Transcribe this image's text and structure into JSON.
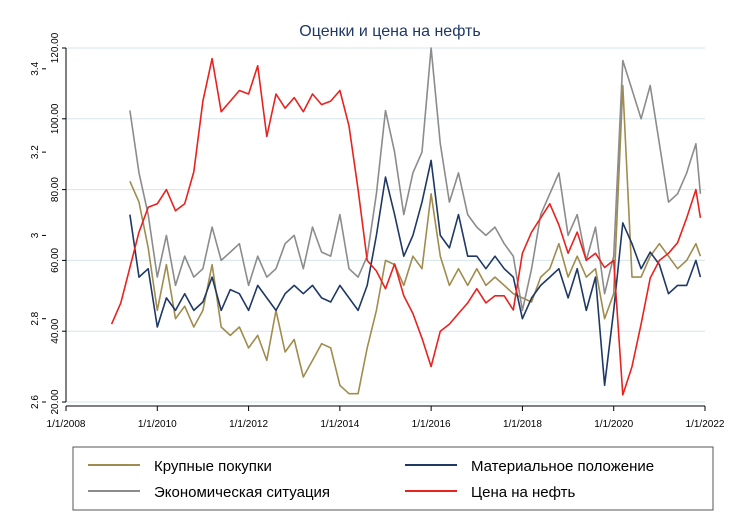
{
  "chart_data": {
    "type": "line",
    "title": "Оценки и цена на нефть",
    "x_ticks": [
      "1/1/2008",
      "1/1/2010",
      "1/1/2012",
      "1/1/2014",
      "1/1/2016",
      "1/1/2018",
      "1/1/2020",
      "1/1/2022"
    ],
    "x_range": [
      2008.0,
      2022.0
    ],
    "left_axis": {
      "ticks": [
        "2.6",
        "2.8",
        "3",
        "3.2",
        "3.4"
      ],
      "range": [
        2.6,
        3.45
      ]
    },
    "right_axis": {
      "ticks": [
        "20.00",
        "40.00",
        "60.00",
        "80.00",
        "100.00",
        "120.00"
      ],
      "range": [
        20,
        120
      ]
    },
    "legend_position": "bottom",
    "series": [
      {
        "name": "Крупные покупки",
        "axis": "left",
        "color": "#a08c4e",
        "x": [
          2009.4,
          2009.6,
          2009.8,
          2010.0,
          2010.2,
          2010.4,
          2010.6,
          2010.8,
          2011.0,
          2011.2,
          2011.4,
          2011.6,
          2011.8,
          2012.0,
          2012.2,
          2012.4,
          2012.6,
          2012.8,
          2013.0,
          2013.2,
          2013.4,
          2013.6,
          2013.8,
          2014.0,
          2014.2,
          2014.4,
          2014.6,
          2014.8,
          2015.0,
          2015.2,
          2015.4,
          2015.6,
          2015.8,
          2016.0,
          2016.2,
          2016.4,
          2016.6,
          2016.8,
          2017.0,
          2017.2,
          2017.4,
          2017.6,
          2017.8,
          2018.0,
          2018.2,
          2018.4,
          2018.6,
          2018.8,
          2019.0,
          2019.2,
          2019.4,
          2019.6,
          2019.8,
          2020.0,
          2020.2,
          2020.4,
          2020.6,
          2020.8,
          2021.0,
          2021.2,
          2021.4,
          2021.6,
          2021.8,
          2021.9
        ],
        "y": [
          3.13,
          3.08,
          2.97,
          2.82,
          2.93,
          2.8,
          2.83,
          2.78,
          2.82,
          2.93,
          2.78,
          2.76,
          2.78,
          2.73,
          2.76,
          2.7,
          2.82,
          2.72,
          2.75,
          2.66,
          2.7,
          2.74,
          2.73,
          2.64,
          2.62,
          2.62,
          2.73,
          2.82,
          2.94,
          2.93,
          2.88,
          2.95,
          2.92,
          3.1,
          2.95,
          2.88,
          2.92,
          2.88,
          2.92,
          2.88,
          2.9,
          2.88,
          2.86,
          2.85,
          2.84,
          2.9,
          2.92,
          2.98,
          2.9,
          2.95,
          2.9,
          2.92,
          2.8,
          2.86,
          3.36,
          2.9,
          2.9,
          2.95,
          2.98,
          2.95,
          2.92,
          2.94,
          2.98,
          2.95
        ]
      },
      {
        "name": "Материальное положение",
        "axis": "left",
        "color": "#1f3864",
        "x": [
          2009.4,
          2009.6,
          2009.8,
          2010.0,
          2010.2,
          2010.4,
          2010.6,
          2010.8,
          2011.0,
          2011.2,
          2011.4,
          2011.6,
          2011.8,
          2012.0,
          2012.2,
          2012.4,
          2012.6,
          2012.8,
          2013.0,
          2013.2,
          2013.4,
          2013.6,
          2013.8,
          2014.0,
          2014.2,
          2014.4,
          2014.6,
          2014.8,
          2015.0,
          2015.2,
          2015.4,
          2015.6,
          2015.8,
          2016.0,
          2016.2,
          2016.4,
          2016.6,
          2016.8,
          2017.0,
          2017.2,
          2017.4,
          2017.6,
          2017.8,
          2018.0,
          2018.2,
          2018.4,
          2018.6,
          2018.8,
          2019.0,
          2019.2,
          2019.4,
          2019.6,
          2019.8,
          2020.0,
          2020.2,
          2020.4,
          2020.6,
          2020.8,
          2021.0,
          2021.2,
          2021.4,
          2021.6,
          2021.8,
          2021.9
        ],
        "y": [
          3.05,
          2.9,
          2.92,
          2.78,
          2.85,
          2.82,
          2.86,
          2.82,
          2.84,
          2.9,
          2.82,
          2.87,
          2.86,
          2.82,
          2.88,
          2.85,
          2.82,
          2.86,
          2.88,
          2.86,
          2.88,
          2.85,
          2.84,
          2.88,
          2.85,
          2.82,
          2.88,
          3.0,
          3.14,
          3.05,
          2.95,
          3.0,
          3.08,
          3.18,
          3.0,
          2.97,
          3.05,
          2.95,
          2.95,
          2.92,
          2.95,
          2.92,
          2.9,
          2.8,
          2.85,
          2.88,
          2.9,
          2.92,
          2.85,
          2.92,
          2.82,
          2.9,
          2.64,
          2.82,
          3.03,
          2.98,
          2.92,
          2.96,
          2.93,
          2.86,
          2.88,
          2.88,
          2.94,
          2.9
        ]
      },
      {
        "name": "Экономическая ситуация",
        "axis": "left",
        "color": "#8c8c8c",
        "x": [
          2009.4,
          2009.6,
          2009.8,
          2010.0,
          2010.2,
          2010.4,
          2010.6,
          2010.8,
          2011.0,
          2011.2,
          2011.4,
          2011.6,
          2011.8,
          2012.0,
          2012.2,
          2012.4,
          2012.6,
          2012.8,
          2013.0,
          2013.2,
          2013.4,
          2013.6,
          2013.8,
          2014.0,
          2014.2,
          2014.4,
          2014.6,
          2014.8,
          2015.0,
          2015.2,
          2015.4,
          2015.6,
          2015.8,
          2016.0,
          2016.2,
          2016.4,
          2016.6,
          2016.8,
          2017.0,
          2017.2,
          2017.4,
          2017.6,
          2017.8,
          2018.0,
          2018.2,
          2018.4,
          2018.6,
          2018.8,
          2019.0,
          2019.2,
          2019.4,
          2019.6,
          2019.8,
          2020.0,
          2020.2,
          2020.4,
          2020.6,
          2020.8,
          2021.0,
          2021.2,
          2021.4,
          2021.6,
          2021.8,
          2021.9
        ],
        "y": [
          3.3,
          3.15,
          3.05,
          2.9,
          3.0,
          2.88,
          2.95,
          2.9,
          2.92,
          3.02,
          2.94,
          2.96,
          2.98,
          2.88,
          2.95,
          2.9,
          2.92,
          2.98,
          3.0,
          2.92,
          3.02,
          2.96,
          2.95,
          3.05,
          2.92,
          2.9,
          2.95,
          3.1,
          3.3,
          3.2,
          3.05,
          3.15,
          3.2,
          3.45,
          3.22,
          3.08,
          3.15,
          3.05,
          3.02,
          3.0,
          3.02,
          2.98,
          2.95,
          2.82,
          2.92,
          3.05,
          3.1,
          3.15,
          3.0,
          3.05,
          2.94,
          3.02,
          2.86,
          2.95,
          3.42,
          3.35,
          3.28,
          3.36,
          3.22,
          3.08,
          3.1,
          3.15,
          3.22,
          3.1
        ]
      },
      {
        "name": "Цена на нефть",
        "axis": "right",
        "color": "#e8231f",
        "x": [
          2009.0,
          2009.2,
          2009.4,
          2009.6,
          2009.8,
          2010.0,
          2010.2,
          2010.4,
          2010.6,
          2010.8,
          2011.0,
          2011.2,
          2011.4,
          2011.6,
          2011.8,
          2012.0,
          2012.2,
          2012.4,
          2012.6,
          2012.8,
          2013.0,
          2013.2,
          2013.4,
          2013.6,
          2013.8,
          2014.0,
          2014.2,
          2014.4,
          2014.6,
          2014.8,
          2015.0,
          2015.2,
          2015.4,
          2015.6,
          2015.8,
          2016.0,
          2016.2,
          2016.4,
          2016.6,
          2016.8,
          2017.0,
          2017.2,
          2017.4,
          2017.6,
          2017.8,
          2018.0,
          2018.2,
          2018.4,
          2018.6,
          2018.8,
          2019.0,
          2019.2,
          2019.4,
          2019.6,
          2019.8,
          2020.0,
          2020.2,
          2020.4,
          2020.6,
          2020.8,
          2021.0,
          2021.2,
          2021.4,
          2021.6,
          2021.8,
          2021.9
        ],
        "y": [
          42,
          48,
          58,
          68,
          75,
          76,
          80,
          74,
          76,
          85,
          105,
          117,
          102,
          105,
          108,
          107,
          115,
          95,
          107,
          103,
          106,
          102,
          107,
          104,
          105,
          108,
          98,
          80,
          60,
          57,
          52,
          59,
          50,
          45,
          38,
          30,
          40,
          42,
          45,
          48,
          52,
          48,
          50,
          50,
          46,
          62,
          68,
          72,
          76,
          70,
          62,
          68,
          60,
          62,
          58,
          60,
          22,
          30,
          42,
          55,
          60,
          62,
          65,
          72,
          80,
          72
        ]
      }
    ]
  },
  "legend": {
    "items": [
      {
        "label": "Крупные покупки",
        "color": "#a08c4e"
      },
      {
        "label": "Материальное положение",
        "color": "#1f3864"
      },
      {
        "label": "Экономическая ситуация",
        "color": "#8c8c8c"
      },
      {
        "label": "Цена на нефть",
        "color": "#e8231f"
      }
    ]
  }
}
